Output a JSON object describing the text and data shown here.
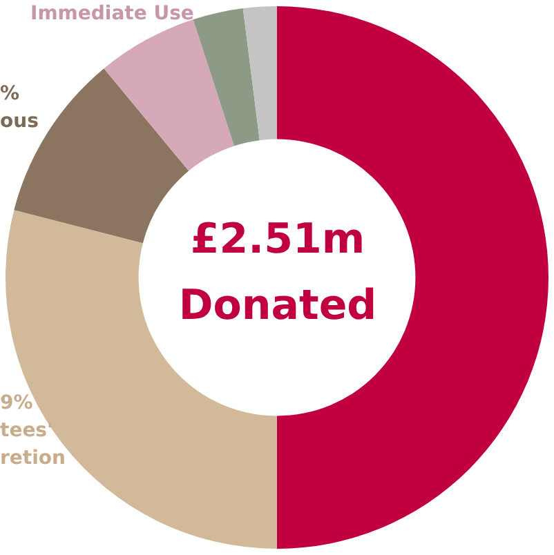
{
  "chart_data": {
    "type": "donut",
    "title": "£2.51m Donated",
    "categories": [
      null,
      "tees' retion",
      "ous",
      "Immediate Use",
      null,
      null
    ],
    "values": [
      50,
      29,
      10,
      6,
      3,
      2
    ],
    "annotations": [
      "9%",
      "%"
    ],
    "colors": [
      "#c0003f",
      "#d2b99a",
      "#8b7560",
      "#d6a9b8",
      "#8c9a86",
      "#c4c4c4"
    ],
    "legend": false
  }
}
